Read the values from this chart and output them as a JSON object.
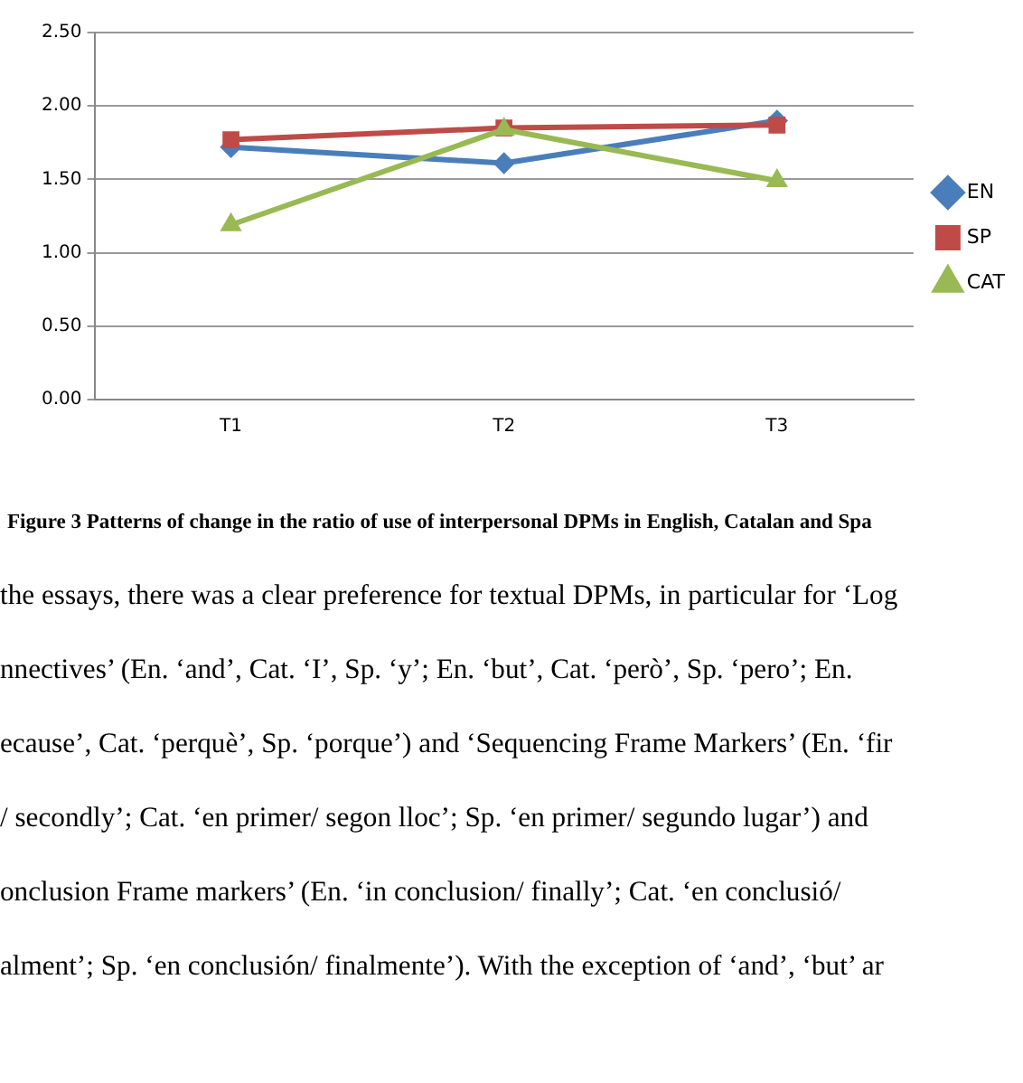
{
  "chart_data": {
    "type": "line",
    "categories": [
      "T1",
      "T2",
      "T3"
    ],
    "series": [
      {
        "name": "EN",
        "color": "#4a7ebb",
        "marker": "diamond",
        "values": [
          1.72,
          1.61,
          1.9
        ]
      },
      {
        "name": "SP",
        "color": "#be4b48",
        "marker": "square",
        "values": [
          1.77,
          1.85,
          1.87
        ]
      },
      {
        "name": "CAT",
        "color": "#98b954",
        "marker": "triangle",
        "values": [
          1.19,
          1.84,
          1.49
        ]
      }
    ],
    "ylim": [
      0,
      2.5
    ],
    "yticks": [
      {
        "value": 0,
        "label": "0.00"
      },
      {
        "value": 0.5,
        "label": "0.50"
      },
      {
        "value": 1,
        "label": "1.00"
      },
      {
        "value": 1.5,
        "label": "1.50"
      },
      {
        "value": 2,
        "label": "2.00"
      },
      {
        "value": 2.5,
        "label": "2.50"
      }
    ],
    "grid": "y",
    "legend": "right",
    "line_style": "solid",
    "annotations": [
      "Figure 3 Patterns of change in the ratio of use of interpersonal DPMs in English, Catalan and Spa",
      "the essays, there was a clear preference for textual DPMs, in particular for ‘Log",
      "nnectives’ (En. ‘and’, Cat. ‘I’, Sp. ‘y’; En. ‘but’, Cat. ‘però’, Sp. ‘pero’; En.",
      "ecause’, Cat. ‘perquè’, Sp. ‘porque’) and ‘Sequencing Frame Markers’ (En. ‘fir",
      "/ secondly’; Cat. ‘en primer/ segon lloc’; Sp. ‘en primer/ segundo lugar’) and",
      "onclusion Frame markers’ (En. ‘in conclusion/ finally’; Cat. ‘en conclusió/",
      "alment’; Sp. ‘en conclusión/ finalmente’). With the exception of ‘and’, ‘but’ ar"
    ]
  }
}
